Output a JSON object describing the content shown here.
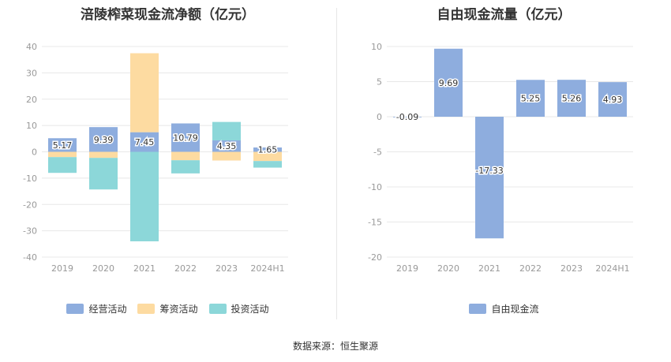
{
  "source": "数据来源：恒生聚源",
  "chart_data": [
    {
      "type": "bar",
      "stacked": true,
      "title": "涪陵榨菜现金流净额（亿元）",
      "categories": [
        "2019",
        "2020",
        "2021",
        "2022",
        "2023",
        "2024H1"
      ],
      "ylim": [
        -40,
        40
      ],
      "yticks": [
        40,
        30,
        20,
        10,
        0,
        -10,
        -20,
        -30,
        -40
      ],
      "grid": true,
      "legend_position": "bottom",
      "series": [
        {
          "name": "经营活动",
          "color": "#8eadde",
          "values": [
            5.17,
            9.39,
            7.45,
            10.79,
            4.35,
            1.65
          ],
          "labels": [
            "5.17",
            "9.39",
            "7.45",
            "10.79",
            "4.35",
            "1.65"
          ]
        },
        {
          "name": "筹资活动",
          "color": "#fddba1",
          "values": [
            -2.0,
            -2.3,
            30.0,
            -3.2,
            -3.3,
            -3.5
          ]
        },
        {
          "name": "投资活动",
          "color": "#8cd7d9",
          "values": [
            -6.0,
            -12.0,
            -34.0,
            -5.0,
            7.0,
            -2.5
          ]
        }
      ]
    },
    {
      "type": "bar",
      "title": "自由现金流量（亿元）",
      "categories": [
        "2019",
        "2020",
        "2021",
        "2022",
        "2023",
        "2024H1"
      ],
      "ylim": [
        -20,
        10
      ],
      "yticks": [
        10,
        5,
        0,
        -5,
        -10,
        -15,
        -20
      ],
      "grid": true,
      "legend_position": "bottom",
      "series": [
        {
          "name": "自由现金流",
          "color": "#8eadde",
          "values": [
            -0.09,
            9.69,
            -17.33,
            5.25,
            5.26,
            4.93
          ],
          "labels": [
            "-0.09",
            "9.69",
            "-17.33",
            "5.25",
            "5.26",
            "4.93"
          ]
        }
      ]
    }
  ]
}
